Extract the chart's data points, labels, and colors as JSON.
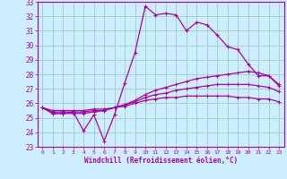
{
  "xlabel": "Windchill (Refroidissement éolien,°C)",
  "xlim": [
    -0.5,
    23.5
  ],
  "ylim": [
    23,
    33
  ],
  "yticks": [
    23,
    24,
    25,
    26,
    27,
    28,
    29,
    30,
    31,
    32,
    33
  ],
  "xticks": [
    0,
    1,
    2,
    3,
    4,
    5,
    6,
    7,
    8,
    9,
    10,
    11,
    12,
    13,
    14,
    15,
    16,
    17,
    18,
    19,
    20,
    21,
    22,
    23
  ],
  "background_color": "#cceeff",
  "line_color": "#aa00aa",
  "grid_color": "#99cccc",
  "line1_x": [
    0,
    1,
    2,
    3,
    4,
    5,
    6,
    7,
    8,
    9,
    10,
    11,
    12,
    13,
    14,
    15,
    16,
    17,
    18,
    19,
    20,
    21,
    22,
    23
  ],
  "line1_y": [
    25.7,
    25.3,
    25.3,
    25.4,
    24.1,
    25.2,
    23.4,
    25.2,
    27.4,
    29.5,
    32.7,
    32.1,
    32.2,
    32.1,
    31.0,
    31.6,
    31.4,
    30.7,
    29.9,
    29.7,
    28.7,
    27.9,
    27.9,
    27.2
  ],
  "line2_x": [
    0,
    1,
    2,
    3,
    4,
    5,
    6,
    7,
    8,
    9,
    10,
    11,
    12,
    13,
    14,
    15,
    16,
    17,
    18,
    19,
    20,
    21,
    22,
    23
  ],
  "line2_y": [
    25.7,
    25.3,
    25.3,
    25.3,
    25.3,
    25.4,
    25.5,
    25.7,
    25.9,
    26.2,
    26.6,
    26.9,
    27.1,
    27.3,
    27.5,
    27.7,
    27.8,
    27.9,
    28.0,
    28.1,
    28.2,
    28.1,
    27.9,
    27.3
  ],
  "line3_x": [
    0,
    1,
    2,
    3,
    4,
    5,
    6,
    7,
    8,
    9,
    10,
    11,
    12,
    13,
    14,
    15,
    16,
    17,
    18,
    19,
    20,
    21,
    22,
    23
  ],
  "line3_y": [
    25.7,
    25.4,
    25.4,
    25.4,
    25.4,
    25.5,
    25.5,
    25.7,
    25.9,
    26.1,
    26.4,
    26.6,
    26.7,
    26.9,
    27.0,
    27.1,
    27.2,
    27.3,
    27.3,
    27.3,
    27.3,
    27.2,
    27.1,
    26.8
  ],
  "line4_x": [
    0,
    1,
    2,
    3,
    4,
    5,
    6,
    7,
    8,
    9,
    10,
    11,
    12,
    13,
    14,
    15,
    16,
    17,
    18,
    19,
    20,
    21,
    22,
    23
  ],
  "line4_y": [
    25.7,
    25.5,
    25.5,
    25.5,
    25.5,
    25.6,
    25.6,
    25.7,
    25.8,
    26.0,
    26.2,
    26.3,
    26.4,
    26.4,
    26.5,
    26.5,
    26.5,
    26.5,
    26.5,
    26.4,
    26.4,
    26.3,
    26.3,
    26.1
  ]
}
